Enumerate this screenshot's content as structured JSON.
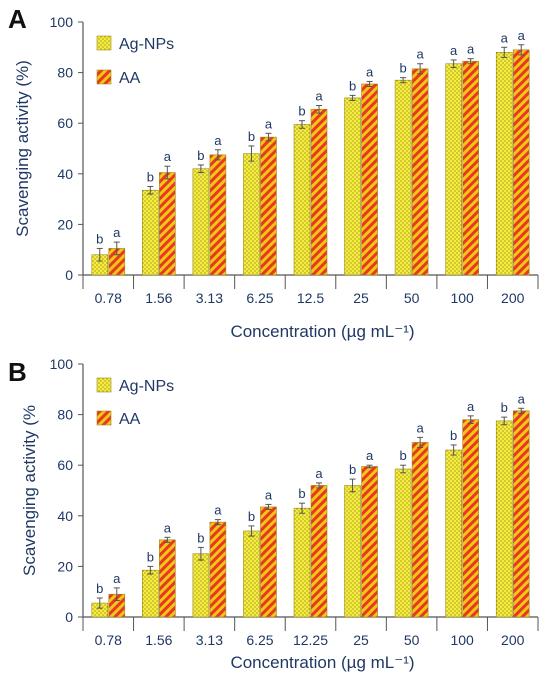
{
  "colors": {
    "ag_fill": "#f5ec3f",
    "ag_dot": "#8a7d10",
    "aa_base": "#f5c518",
    "aa_stripe": "#e53a1f",
    "axis": "#1f3864",
    "error": "#555555"
  },
  "chart_data": [
    {
      "type": "bar",
      "panel": "A",
      "categories": [
        "0.78",
        "1.56",
        "3.13",
        "6.25",
        "12.5",
        "25",
        "50",
        "100",
        "200"
      ],
      "series": [
        {
          "name": "Ag-NPs",
          "values": [
            8,
            33.5,
            42,
            48,
            59.5,
            70,
            77,
            83.5,
            88
          ],
          "errors": [
            2.5,
            1.5,
            1.5,
            3,
            1.5,
            1,
            1,
            1.5,
            2
          ],
          "sig": [
            "b",
            "b",
            "b",
            "b",
            "b",
            "b",
            "b",
            "a",
            "a"
          ]
        },
        {
          "name": "AA",
          "values": [
            10.5,
            40.5,
            47.5,
            54.5,
            65.5,
            75.5,
            81.5,
            84.5,
            89
          ],
          "errors": [
            2.5,
            2.5,
            2,
            1.5,
            1.5,
            1,
            2,
            1,
            2
          ],
          "sig": [
            "a",
            "a",
            "a",
            "a",
            "a",
            "a",
            "a",
            "a",
            "a"
          ]
        }
      ],
      "xlabel": "Concentration (µg mL⁻¹)",
      "ylabel": "Scavenging activity (%)",
      "ylim": [
        0,
        100
      ],
      "yticks": [
        "0",
        "20",
        "40",
        "60",
        "80",
        "100"
      ],
      "legend_position": "top-left",
      "grid": false
    },
    {
      "type": "bar",
      "panel": "B",
      "categories": [
        "0.78",
        "1.56",
        "3.13",
        "6.25",
        "12.25",
        "25",
        "50",
        "100",
        "200"
      ],
      "series": [
        {
          "name": "Ag-NPs",
          "values": [
            5.5,
            18.5,
            25,
            34,
            43,
            52,
            58.5,
            66,
            77.5
          ],
          "errors": [
            2,
            1.5,
            2.5,
            2,
            2,
            2.5,
            1.5,
            2,
            1.5
          ],
          "sig": [
            "b",
            "b",
            "b",
            "b",
            "b",
            "b",
            "b",
            "b",
            "b"
          ]
        },
        {
          "name": "AA",
          "values": [
            9,
            30.5,
            37.5,
            43.5,
            52,
            59.5,
            69,
            78,
            81.5
          ],
          "errors": [
            2.5,
            1,
            1,
            1,
            1,
            0.5,
            2,
            1.5,
            1
          ],
          "sig": [
            "a",
            "a",
            "a",
            "a",
            "a",
            "a",
            "a",
            "a",
            "a"
          ]
        }
      ],
      "xlabel": "Concentration (µg mL⁻¹)",
      "ylabel": "Scavenging activity (%",
      "ylim": [
        0,
        100
      ],
      "yticks": [
        "0",
        "20",
        "40",
        "60",
        "80",
        "100"
      ],
      "legend_position": "top-left",
      "grid": false
    }
  ]
}
